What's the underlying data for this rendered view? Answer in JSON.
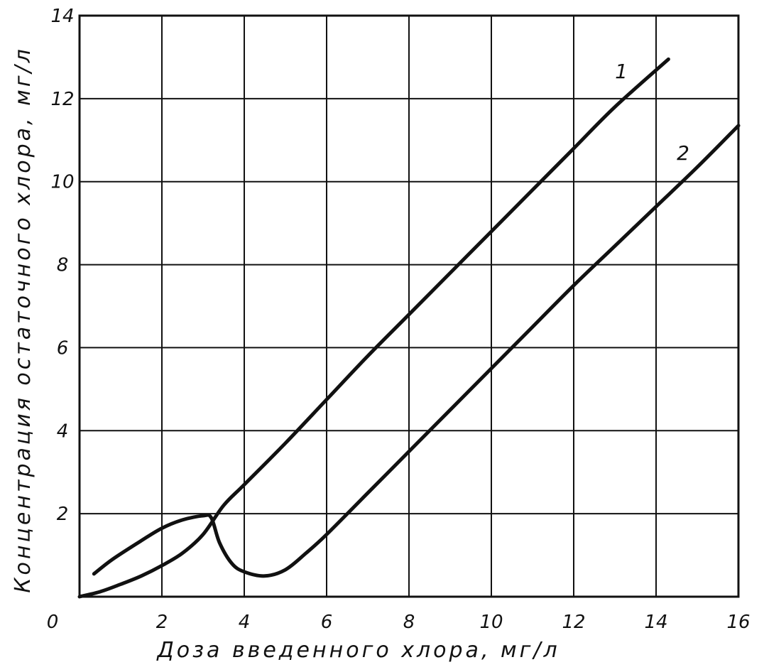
{
  "chart_data": {
    "type": "line",
    "xlabel": "Доза введенного хлора, мг/л",
    "ylabel": "Концентрация остаточного хлора, мг/л",
    "xlim": [
      0,
      16
    ],
    "ylim": [
      0,
      14
    ],
    "x_ticks": [
      0,
      2,
      4,
      6,
      8,
      10,
      12,
      14,
      16
    ],
    "y_ticks": [
      2,
      4,
      6,
      8,
      10,
      12,
      14
    ],
    "x_tick_labels": [
      "0",
      "2",
      "4",
      "6",
      "8",
      "10",
      "12",
      "14",
      "16"
    ],
    "y_tick_labels": [
      "2",
      "4",
      "6",
      "8",
      "10",
      "12",
      "14"
    ],
    "grid": true,
    "series": [
      {
        "name": "1",
        "points": [
          [
            0.0,
            0.0
          ],
          [
            0.5,
            0.12
          ],
          [
            1.0,
            0.3
          ],
          [
            1.5,
            0.5
          ],
          [
            2.0,
            0.75
          ],
          [
            2.5,
            1.05
          ],
          [
            3.0,
            1.5
          ],
          [
            3.5,
            2.2
          ],
          [
            4.0,
            2.7
          ],
          [
            5.0,
            3.7
          ],
          [
            6.0,
            4.75
          ],
          [
            7.0,
            5.8
          ],
          [
            8.0,
            6.8
          ],
          [
            9.0,
            7.8
          ],
          [
            10.0,
            8.8
          ],
          [
            11.0,
            9.8
          ],
          [
            12.0,
            10.8
          ],
          [
            13.0,
            11.8
          ],
          [
            14.3,
            12.95
          ]
        ]
      },
      {
        "name": "2",
        "points": [
          [
            0.35,
            0.55
          ],
          [
            0.8,
            0.9
          ],
          [
            1.5,
            1.35
          ],
          [
            2.0,
            1.65
          ],
          [
            2.5,
            1.85
          ],
          [
            3.0,
            1.95
          ],
          [
            3.2,
            1.9
          ],
          [
            3.4,
            1.3
          ],
          [
            3.7,
            0.8
          ],
          [
            4.0,
            0.6
          ],
          [
            4.5,
            0.5
          ],
          [
            5.0,
            0.65
          ],
          [
            5.5,
            1.05
          ],
          [
            6.0,
            1.5
          ],
          [
            7.0,
            2.5
          ],
          [
            8.0,
            3.5
          ],
          [
            9.0,
            4.5
          ],
          [
            10.0,
            5.5
          ],
          [
            11.0,
            6.5
          ],
          [
            12.0,
            7.5
          ],
          [
            13.0,
            8.45
          ],
          [
            14.0,
            9.4
          ],
          [
            15.0,
            10.35
          ],
          [
            16.0,
            11.35
          ]
        ]
      }
    ],
    "series_labels": [
      "1",
      "2"
    ]
  }
}
